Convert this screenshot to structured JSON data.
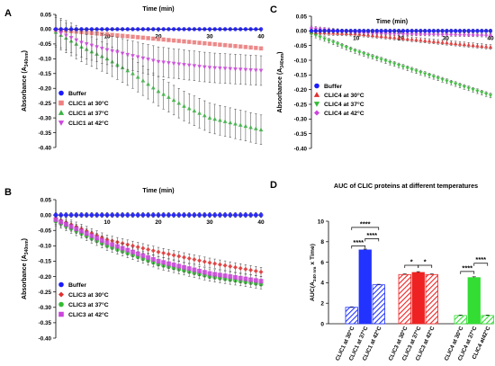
{
  "chart_data": [
    {
      "panel": "A",
      "type": "scatter",
      "xlabel": "Time (min)",
      "ylabel_main": "Absorbance (A",
      "ylabel_sub": "340nm",
      "ylabel_end": ")",
      "xlim": [
        0,
        40
      ],
      "ylim": [
        -0.4,
        0.05
      ],
      "xticks": [
        10,
        20,
        30,
        40
      ],
      "yticks": [
        0.05,
        0.0,
        -0.05,
        -0.1,
        -0.15,
        -0.2,
        -0.25,
        -0.3,
        -0.35,
        -0.4
      ],
      "legend_position": "bottom-left",
      "series": [
        {
          "name": "Buffer",
          "marker": "circle",
          "color": "#1a1aff",
          "x": [
            0,
            40
          ],
          "y": [
            0.0,
            0.0
          ],
          "err": 0.004
        },
        {
          "name": "CLIC1 at 30°C",
          "marker": "square",
          "color": "#f08080",
          "x": [
            0,
            40
          ],
          "y": [
            -0.002,
            -0.065
          ],
          "err": 0.004
        },
        {
          "name": "CLIC1 at 37°C",
          "marker": "triangle",
          "color": "#3cb043",
          "x": [
            0,
            5,
            10,
            15,
            20,
            25,
            30,
            35,
            40
          ],
          "y": [
            -0.01,
            -0.06,
            -0.1,
            -0.15,
            -0.21,
            -0.26,
            -0.3,
            -0.32,
            -0.34
          ],
          "err": 0.05
        },
        {
          "name": "CLIC1 at 42°C",
          "marker": "triangle-down",
          "color": "#cc44dd",
          "x": [
            0,
            5,
            10,
            15,
            20,
            25,
            30,
            35,
            40
          ],
          "y": [
            -0.005,
            -0.045,
            -0.07,
            -0.09,
            -0.11,
            -0.12,
            -0.13,
            -0.135,
            -0.14
          ],
          "err": 0.05
        }
      ]
    },
    {
      "panel": "B",
      "type": "scatter",
      "xlabel": "Time (min)",
      "ylabel_main": "Absorbance (A",
      "ylabel_sub": "340nm",
      "ylabel_end": ")",
      "xlim": [
        0,
        40
      ],
      "ylim": [
        -0.4,
        0.05
      ],
      "xticks": [
        10,
        20,
        30,
        40
      ],
      "yticks": [
        0.05,
        0.0,
        -0.05,
        -0.1,
        -0.15,
        -0.2,
        -0.25,
        -0.3,
        -0.35,
        -0.4
      ],
      "legend_position": "bottom-left",
      "series": [
        {
          "name": "Buffer",
          "marker": "circle",
          "color": "#1a1aff",
          "x": [
            0,
            40
          ],
          "y": [
            0.0,
            0.0
          ],
          "err": 0.008
        },
        {
          "name": "CLIC3 at 30°C",
          "marker": "diamond",
          "color": "#e03030",
          "x": [
            0,
            10,
            20,
            30,
            40
          ],
          "y": [
            -0.01,
            -0.08,
            -0.12,
            -0.155,
            -0.185
          ],
          "err": 0.015
        },
        {
          "name": "CLIC3 at 37°C",
          "marker": "circle",
          "color": "#33bb33",
          "x": [
            0,
            10,
            20,
            30,
            40
          ],
          "y": [
            -0.02,
            -0.1,
            -0.16,
            -0.2,
            -0.225
          ],
          "err": 0.015
        },
        {
          "name": "CLIC3 at 42°C",
          "marker": "square",
          "color": "#cc44dd",
          "x": [
            0,
            10,
            20,
            30,
            40
          ],
          "y": [
            -0.015,
            -0.09,
            -0.15,
            -0.19,
            -0.215
          ],
          "err": 0.015
        }
      ]
    },
    {
      "panel": "C",
      "type": "scatter",
      "xlabel": "Time (min)",
      "ylabel_main": "Absorbance (A",
      "ylabel_sub": "340nm",
      "ylabel_end": ")",
      "xlim": [
        0,
        40
      ],
      "ylim": [
        -0.4,
        0.05
      ],
      "xticks": [
        10,
        20,
        30,
        40
      ],
      "yticks": [
        0.05,
        0.0,
        -0.05,
        -0.1,
        -0.15,
        -0.2,
        -0.25,
        -0.3,
        -0.35,
        -0.4
      ],
      "legend_position": "bottom-left",
      "series": [
        {
          "name": "Buffer",
          "marker": "circle",
          "color": "#1a1aff",
          "x": [
            0,
            40
          ],
          "y": [
            0.0,
            0.0
          ],
          "err": 0.006
        },
        {
          "name": "CLIC4 at 30°C",
          "marker": "triangle",
          "color": "#e03030",
          "x": [
            0,
            10,
            20,
            30,
            40
          ],
          "y": [
            -0.005,
            -0.01,
            -0.025,
            -0.04,
            -0.055
          ],
          "err": 0.008
        },
        {
          "name": "CLIC4 at 37°C",
          "marker": "triangle-down",
          "color": "#33bb33",
          "x": [
            0,
            10,
            20,
            30,
            40
          ],
          "y": [
            -0.01,
            -0.07,
            -0.12,
            -0.17,
            -0.22
          ],
          "err": 0.008
        },
        {
          "name": "CLIC4 at 42°C",
          "marker": "diamond",
          "color": "#cc44dd",
          "x": [
            0,
            10,
            20,
            30,
            40
          ],
          "y": [
            0.01,
            -0.005,
            -0.01,
            -0.012,
            -0.015
          ],
          "err": 0.006
        }
      ]
    },
    {
      "panel": "D",
      "type": "bar",
      "title": "AUC of CLIC proteins at different temperatures",
      "ylabel_main": "AUC(A",
      "ylabel_sub": "340 nm",
      "ylabel_end": " x Time)",
      "ylim": [
        0,
        10
      ],
      "yticks": [
        0,
        2,
        4,
        6,
        8,
        10
      ],
      "categories": [
        "CLIC1 at 30°C",
        "CLIC1 at 37°C",
        "CLIC1 at 42°C",
        "CLIC3 at 30°C",
        "CLIC3 at 37°C",
        "CLIC3 at 42°C",
        "CLIC4 at 30°C",
        "CLIC4 at 37°C",
        "CLIC4 at42°C"
      ],
      "values": [
        1.6,
        7.2,
        3.8,
        4.8,
        5.0,
        4.8,
        0.8,
        4.5,
        0.8
      ],
      "errors": [
        0.05,
        0.08,
        0.05,
        0.06,
        0.08,
        0.06,
        0.05,
        0.08,
        0.05
      ],
      "colors": [
        "#2233ff",
        "#2233ff",
        "#2233ff",
        "#ee2222",
        "#ee2222",
        "#ee2222",
        "#33dd33",
        "#33dd33",
        "#33dd33"
      ],
      "fills": [
        "hatch",
        "solid",
        "hatch",
        "hatch",
        "solid",
        "hatch",
        "hatch",
        "solid",
        "hatch"
      ],
      "significance": [
        {
          "from": 0,
          "to": 2,
          "label": "****",
          "level": 9.4
        },
        {
          "from": 1,
          "to": 2,
          "label": "****",
          "level": 8.3
        },
        {
          "from": 0,
          "to": 1,
          "label": "****",
          "level": 7.6
        },
        {
          "from": 3,
          "to": 4,
          "label": "*",
          "level": 5.7
        },
        {
          "from": 4,
          "to": 5,
          "label": "*",
          "level": 5.7
        },
        {
          "from": 7,
          "to": 8,
          "label": "****",
          "level": 5.9
        },
        {
          "from": 6,
          "to": 7,
          "label": "****",
          "level": 5.1
        }
      ]
    }
  ]
}
